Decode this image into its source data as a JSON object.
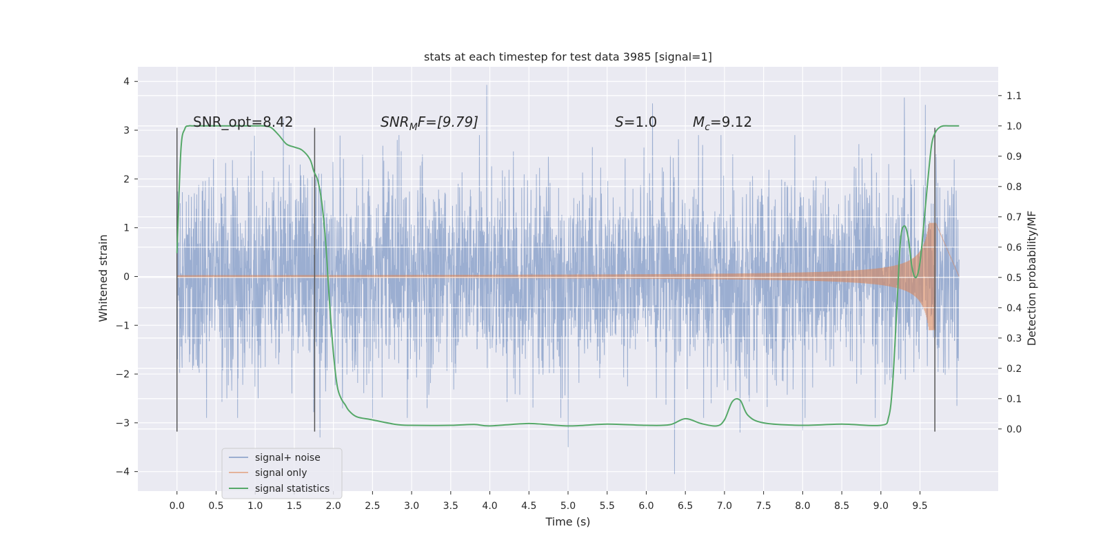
{
  "chart_data": {
    "type": "line",
    "title": "stats at each timestep for test data 3985 [signal=1]",
    "xlabel": "Time (s)",
    "ylabel": "Whitened strain",
    "y2label": "Detection probability/MF",
    "xlim": [
      -0.5,
      10.5
    ],
    "ylim": [
      -4.4,
      4.3
    ],
    "y2lim": [
      -0.205,
      1.195
    ],
    "xticks": [
      "0.0",
      "0.5",
      "1.0",
      "1.5",
      "2.0",
      "2.5",
      "3.0",
      "3.5",
      "4.0",
      "4.5",
      "5.0",
      "5.5",
      "6.0",
      "6.5",
      "7.0",
      "7.5",
      "8.0",
      "8.5",
      "9.0",
      "9.5"
    ],
    "yticks": [
      "−4",
      "−3",
      "−2",
      "−1",
      "0",
      "1",
      "2",
      "3",
      "4"
    ],
    "y2ticks": [
      "0.0",
      "0.1",
      "0.2",
      "0.3",
      "0.4",
      "0.5",
      "0.6",
      "0.7",
      "0.8",
      "0.9",
      "1.0",
      "1.1"
    ],
    "grid": true,
    "legend_position": "lower-left",
    "annotations": {
      "snr_opt": "SNR_opt=8.42",
      "snr_mf_base": "SNR",
      "snr_mf_sub": "M",
      "snr_mf_rest": "F=[9.79]",
      "s_base": "S",
      "s_rest": "=1.0",
      "mc_base": "M",
      "mc_sub": "c",
      "mc_rest": "=9.12"
    },
    "vertical_markers": [
      0.0,
      1.76,
      9.69
    ],
    "series": [
      {
        "name": "signal+ noise",
        "color": "#4c72b0",
        "t_range": [
          0.0,
          10.0
        ],
        "envelope_sigma": 1.0,
        "peaks": {
          "max": [
            [
              3.96,
              3.93
            ],
            [
              9.3,
              3.67
            ],
            [
              6.08,
              3.55
            ],
            [
              9.57,
              3.52
            ],
            [
              1.36,
              3.25
            ],
            [
              5.0,
              3.05
            ]
          ],
          "min": [
            [
              6.36,
              -4.05
            ],
            [
              5.0,
              -3.5
            ],
            [
              1.83,
              -3.3
            ],
            [
              7.2,
              -3.2
            ],
            [
              8.0,
              -3.15
            ],
            [
              2.5,
              -2.9
            ]
          ]
        }
      },
      {
        "name": "signal only",
        "color": "#dd8452",
        "chirp": {
          "t_start": 0.0,
          "t_merge": 9.7,
          "amp_end": 1.1,
          "amp_start": 0.01
        }
      },
      {
        "name": "signal statistics",
        "color": "#55a868",
        "axis": "right",
        "x": [
          0.0,
          0.05,
          0.1,
          0.15,
          0.2,
          0.3,
          0.5,
          0.8,
          1.0,
          1.1,
          1.2,
          1.3,
          1.4,
          1.5,
          1.6,
          1.7,
          1.75,
          1.8,
          1.85,
          1.9,
          1.95,
          2.0,
          2.05,
          2.1,
          2.15,
          2.2,
          2.3,
          2.5,
          2.8,
          3.0,
          3.5,
          3.8,
          4.0,
          4.5,
          5.0,
          5.5,
          6.0,
          6.3,
          6.5,
          6.7,
          6.9,
          7.0,
          7.1,
          7.2,
          7.3,
          7.5,
          8.0,
          8.5,
          9.0,
          9.1,
          9.15,
          9.2,
          9.25,
          9.3,
          9.35,
          9.4,
          9.45,
          9.5,
          9.55,
          9.6,
          9.65,
          9.7,
          9.75,
          9.8,
          9.9,
          10.0
        ],
        "y": [
          0.58,
          0.92,
          0.99,
          1.0,
          1.0,
          1.0,
          1.0,
          1.0,
          1.0,
          1.0,
          0.995,
          0.97,
          0.94,
          0.93,
          0.92,
          0.89,
          0.85,
          0.82,
          0.75,
          0.62,
          0.42,
          0.25,
          0.14,
          0.1,
          0.08,
          0.06,
          0.04,
          0.03,
          0.015,
          0.012,
          0.012,
          0.015,
          0.01,
          0.018,
          0.01,
          0.016,
          0.012,
          0.014,
          0.034,
          0.018,
          0.01,
          0.03,
          0.09,
          0.095,
          0.045,
          0.02,
          0.012,
          0.016,
          0.012,
          0.04,
          0.15,
          0.38,
          0.62,
          0.67,
          0.63,
          0.53,
          0.5,
          0.55,
          0.68,
          0.82,
          0.94,
          0.98,
          0.995,
          1.0,
          1.0,
          1.0
        ]
      }
    ]
  }
}
